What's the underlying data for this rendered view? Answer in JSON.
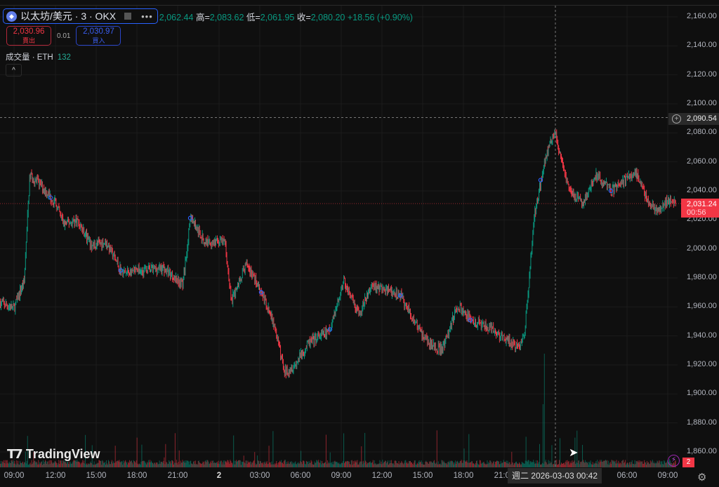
{
  "legend": {
    "symbol": "以太坊/美元 · 3 · OKX",
    "open": "2,062.44",
    "high_label": "高=",
    "high": "2,083.62",
    "low_label": "低=",
    "low": "2,061.95",
    "close_label": "收=",
    "close": "2,080.20",
    "change": "+18.56 (+0.90%)"
  },
  "trade": {
    "sell_price": "2,030.96",
    "sell_label": "賣出",
    "spread": "0.01",
    "buy_price": "2,030.97",
    "buy_label": "買入"
  },
  "volume": {
    "label": "成交量 · ETH",
    "value": "132"
  },
  "collapse_glyph": "^",
  "logo": "TradingView",
  "crosshair": {
    "price": "2,090.54",
    "time": "週二 2026-03-03   00:42"
  },
  "current": {
    "price": "2,031.24",
    "countdown": "00:56"
  },
  "alerts_count": "2",
  "colors": {
    "up": "#089981",
    "down": "#f23645",
    "background": "#0f0f0f",
    "marker": "#2962ff"
  },
  "chart_data": {
    "type": "candlestick",
    "interval": "3m",
    "ylim": [
      1850,
      2165
    ],
    "y_ticks": [
      "2,160.00",
      "2,140.00",
      "2,120.00",
      "2,100.00",
      "2,080.00",
      "2,060.00",
      "2,040.00",
      "2,020.00",
      "2,000.00",
      "1,980.00",
      "1,960.00",
      "1,940.00",
      "1,920.00",
      "1,900.00",
      "1,880.00",
      "1,860.00"
    ],
    "x_ticks": [
      "09:00",
      "12:00",
      "15:00",
      "18:00",
      "21:00",
      "2",
      "03:00",
      "06:00",
      "09:00",
      "12:00",
      "15:00",
      "18:00",
      "21:00",
      "06:00",
      "09:00"
    ],
    "grid": true,
    "price_path": [
      [
        "03-01 08:00",
        1963
      ],
      [
        "03-01 09:00",
        1959
      ],
      [
        "03-01 09:45",
        1978
      ],
      [
        "03-01 10:10",
        2051
      ],
      [
        "03-01 11:05",
        2043
      ],
      [
        "03-01 12:05",
        2031
      ],
      [
        "03-01 12:40",
        2017
      ],
      [
        "03-01 13:40",
        2020
      ],
      [
        "03-01 14:40",
        2002
      ],
      [
        "03-01 15:45",
        2005
      ],
      [
        "03-01 17:00",
        1983
      ],
      [
        "03-01 18:20",
        1985
      ],
      [
        "03-01 19:55",
        1987
      ],
      [
        "03-01 21:25",
        1976
      ],
      [
        "03-01 22:00",
        2022
      ],
      [
        "03-01 23:00",
        2005
      ],
      [
        "03-02 00:30",
        2005
      ],
      [
        "03-02 01:00",
        1964
      ],
      [
        "03-02 02:05",
        1990
      ],
      [
        "03-02 03:05",
        1973
      ],
      [
        "03-02 04:05",
        1949
      ],
      [
        "03-02 04:55",
        1915
      ],
      [
        "03-02 05:40",
        1920
      ],
      [
        "03-02 06:40",
        1935
      ],
      [
        "03-02 08:15",
        1944
      ],
      [
        "03-02 09:15",
        1978
      ],
      [
        "03-02 10:20",
        1954
      ],
      [
        "03-02 11:20",
        1975
      ],
      [
        "03-02 13:25",
        1968
      ],
      [
        "03-02 14:30",
        1949
      ],
      [
        "03-02 15:30",
        1935
      ],
      [
        "03-02 16:30",
        1930
      ],
      [
        "03-02 17:35",
        1961
      ],
      [
        "03-02 18:35",
        1951
      ],
      [
        "03-02 20:10",
        1944
      ],
      [
        "03-02 21:10",
        1937
      ],
      [
        "03-02 22:10",
        1932
      ],
      [
        "03-02 22:35",
        1945
      ],
      [
        "03-02 23:15",
        2022
      ],
      [
        "03-03 00:00",
        2060
      ],
      [
        "03-03 00:45",
        2082
      ],
      [
        "03-03 01:15",
        2060
      ],
      [
        "03-03 01:50",
        2041
      ],
      [
        "03-03 02:50",
        2031
      ],
      [
        "03-03 03:50",
        2051
      ],
      [
        "03-03 04:55",
        2040
      ],
      [
        "03-03 06:40",
        2053
      ],
      [
        "03-03 07:45",
        2031
      ],
      [
        "03-03 08:30",
        2026
      ],
      [
        "03-03 09:15",
        2035
      ],
      [
        "03-03 09:40",
        2031.24
      ]
    ],
    "volume_spikes": [
      [
        "03-03 00:00",
        90
      ],
      [
        "03-02 23:55",
        50
      ]
    ]
  }
}
